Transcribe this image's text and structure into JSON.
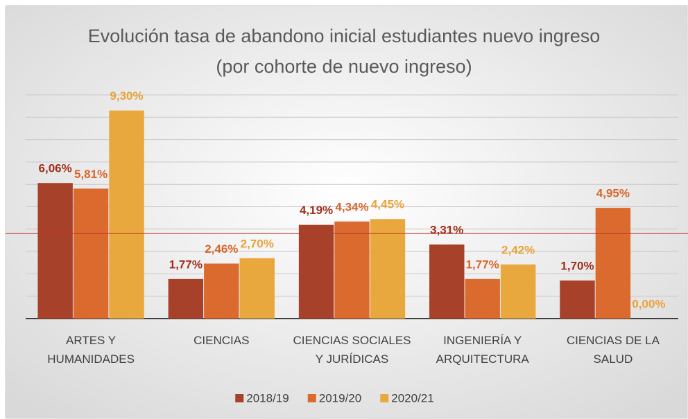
{
  "chart_data": {
    "type": "bar",
    "title": "Evolución tasa de abandono inicial estudiantes nuevo ingreso (por cohorte de nuevo ingreso)",
    "categories": [
      "ARTES Y HUMANIDADES",
      "CIENCIAS",
      "CIENCIAS SOCIALES Y JURÍDICAS",
      "INGENIERÍA Y ARQUITECTURA",
      "CIENCIAS DE LA SALUD"
    ],
    "series": [
      {
        "name": "2018/19",
        "color": "#a8412a",
        "label_color": "#a0301c",
        "values": [
          6.06,
          1.77,
          4.19,
          3.31,
          1.7
        ],
        "value_labels": [
          "6,06%",
          "1,77%",
          "4,19%",
          "3,31%",
          "1,70%"
        ]
      },
      {
        "name": "2019/20",
        "color": "#da6a2e",
        "label_color": "#d9652b",
        "values": [
          5.81,
          2.46,
          4.34,
          1.77,
          4.95
        ],
        "value_labels": [
          "5,81%",
          "2,46%",
          "4,34%",
          "1,77%",
          "4,95%"
        ]
      },
      {
        "name": "2020/21",
        "color": "#e8a83e",
        "label_color": "#e8a33a",
        "values": [
          9.3,
          2.7,
          4.45,
          2.42,
          0.0
        ],
        "value_labels": [
          "9,30%",
          "2,70%",
          "4,45%",
          "2,42%",
          "0,00%"
        ]
      }
    ],
    "ylim": [
      0,
      10
    ],
    "yticks": [
      0,
      1,
      2,
      3,
      4,
      5,
      6,
      7,
      8,
      9,
      10
    ],
    "grid": true,
    "reference_line": {
      "value": 3.8,
      "color": "#c0392b"
    },
    "legend": "bottom"
  }
}
